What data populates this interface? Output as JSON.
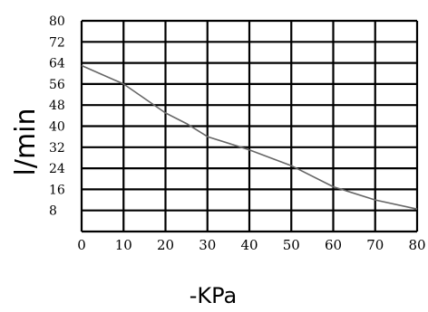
{
  "chart_data": {
    "type": "line",
    "xlabel": "-KPa",
    "ylabel": "l/min",
    "xlim": [
      0,
      80
    ],
    "ylim": [
      0,
      80
    ],
    "x_ticks": [
      "0",
      "10",
      "20",
      "30",
      "40",
      "50",
      "60",
      "70",
      "80"
    ],
    "y_ticks": [
      "8",
      "16",
      "24",
      "32",
      "40",
      "48",
      "56",
      "64",
      "72",
      "80"
    ],
    "grid": true,
    "series": [
      {
        "x": [
          0,
          10,
          20,
          25,
          30,
          40,
          50,
          60,
          70,
          80
        ],
        "y": [
          63,
          56,
          45,
          41,
          36,
          31,
          25,
          17,
          12,
          8.5
        ]
      }
    ],
    "colors": {
      "line": "#666666",
      "grid": "#000000"
    }
  }
}
